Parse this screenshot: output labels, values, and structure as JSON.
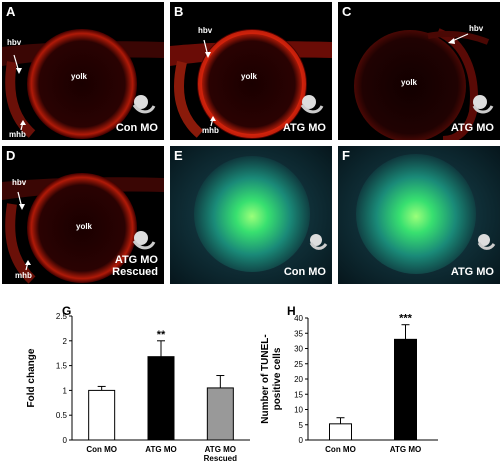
{
  "panels": {
    "A": {
      "letter": "A",
      "hbv": "hbv",
      "yolk": "yolk",
      "mhb": "mhb",
      "cond": "Con MO"
    },
    "B": {
      "letter": "B",
      "hbv": "hbv",
      "yolk": "yolk",
      "mhb": "mhb",
      "cond": "ATG MO"
    },
    "C": {
      "letter": "C",
      "hbv": "hbv",
      "yolk": "yolk",
      "cond": "ATG MO"
    },
    "D": {
      "letter": "D",
      "hbv": "hbv",
      "yolk": "yolk",
      "mhb": "mhb",
      "cond1": "ATG MO",
      "cond2": "Rescued"
    },
    "E": {
      "letter": "E",
      "cond": "Con MO"
    },
    "F": {
      "letter": "F",
      "cond": "ATG MO"
    }
  },
  "chart_data": [
    {
      "panel": "G",
      "type": "bar",
      "ylabel": "Fold change",
      "ylim": [
        0,
        2.5
      ],
      "yticks": [
        "0",
        "0.5",
        "1",
        "1.5",
        "2",
        "2.5"
      ],
      "categories": [
        "Con MO",
        "ATG MO",
        "ATG MO Rescued"
      ],
      "category_lines": [
        [
          "Con MO"
        ],
        [
          "ATG MO"
        ],
        [
          "ATG MO",
          "Rescued"
        ]
      ],
      "values": [
        1.0,
        1.68,
        1.05
      ],
      "errors": [
        0.08,
        0.32,
        0.25
      ],
      "significance": [
        "",
        "**",
        ""
      ],
      "colors": [
        "#ffffff",
        "#000000",
        "#999999"
      ]
    },
    {
      "panel": "H",
      "type": "bar",
      "ylabel_lines": [
        "Number of TUNEL-",
        "positive cells"
      ],
      "ylim": [
        0,
        40
      ],
      "yticks": [
        "0",
        "5",
        "10",
        "15",
        "20",
        "25",
        "30",
        "35",
        "40"
      ],
      "categories": [
        "Con MO",
        "ATG MO"
      ],
      "category_lines": [
        [
          "Con MO"
        ],
        [
          "ATG MO"
        ]
      ],
      "values": [
        5.3,
        33.0
      ],
      "errors": [
        2.0,
        4.8
      ],
      "significance": [
        "",
        "***"
      ],
      "colors": [
        "#ffffff",
        "#000000"
      ]
    }
  ]
}
